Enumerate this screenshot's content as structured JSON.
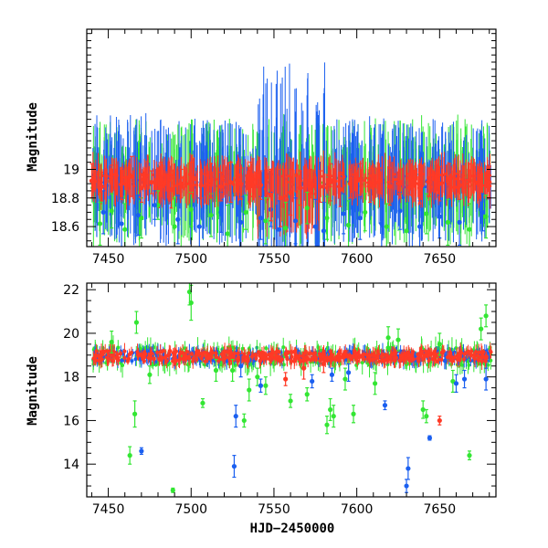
{
  "colors": {
    "green": "#33e633",
    "blue": "#1a5ff0",
    "red": "#ff3a26"
  },
  "chart_data": [
    {
      "type": "scatter",
      "title": "",
      "xlabel": "",
      "ylabel": "Magnitude",
      "xlim": [
        7437,
        7684
      ],
      "ylim": [
        19.98,
        18.46
      ],
      "y_inverted": true,
      "grid": false,
      "xticks": [
        7450,
        7500,
        7550,
        7600,
        7650
      ],
      "yticks": [
        18.6,
        18.8,
        19
      ],
      "ytick_labels": [
        "18.6",
        "18.8",
        "19"
      ],
      "series": [
        {
          "color": "green",
          "x": [
            7445,
            7452,
            7460,
            7470,
            7480,
            7490,
            7500,
            7512,
            7522,
            7533,
            7545,
            7557,
            7570,
            7582,
            7595,
            7605,
            7618,
            7630,
            7642,
            7655,
            7668,
            7678
          ],
          "y": [
            18.62,
            18.71,
            18.58,
            18.66,
            18.75,
            18.6,
            18.72,
            18.68,
            18.55,
            18.7,
            18.64,
            18.59,
            18.73,
            18.66,
            18.61,
            18.7,
            18.6,
            18.57,
            18.69,
            18.63,
            18.58,
            18.67
          ],
          "err": [
            0.15,
            0.12,
            0.18,
            0.14,
            0.1,
            0.2,
            0.12,
            0.15,
            0.2,
            0.12,
            0.16,
            0.18,
            0.11,
            0.15,
            0.17,
            0.13,
            0.16,
            0.19,
            0.14,
            0.16,
            0.18,
            0.15
          ]
        },
        {
          "color": "blue",
          "x": [
            7447,
            7458,
            7468,
            7478,
            7492,
            7505,
            7518,
            7530,
            7542,
            7548,
            7553,
            7563,
            7575,
            7580,
            7592,
            7602,
            7615,
            7626,
            7638,
            7650,
            7662,
            7676
          ],
          "y": [
            18.7,
            18.62,
            18.68,
            18.75,
            18.65,
            18.6,
            18.7,
            18.63,
            18.66,
            18.72,
            18.58,
            18.64,
            18.6,
            18.57,
            18.69,
            18.66,
            18.62,
            18.71,
            18.6,
            18.67,
            18.63,
            18.7
          ],
          "err": [
            0.15,
            0.18,
            0.14,
            0.1,
            0.17,
            0.2,
            0.14,
            0.18,
            0.15,
            0.12,
            0.2,
            0.16,
            0.19,
            0.2,
            0.14,
            0.15,
            0.17,
            0.13,
            0.18,
            0.15,
            0.16,
            0.13
          ]
        },
        {
          "color": "red",
          "x": [
            7440,
            7446,
            7452,
            7458,
            7464,
            7470,
            7476,
            7482,
            7488,
            7494,
            7500,
            7506,
            7512,
            7518,
            7524,
            7530,
            7536,
            7542,
            7548,
            7554,
            7560,
            7566,
            7572,
            7578,
            7584,
            7590,
            7596,
            7602,
            7608,
            7614,
            7620,
            7626,
            7632,
            7638,
            7644,
            7650,
            7656,
            7662,
            7668,
            7674,
            7680
          ],
          "y": [
            18.92,
            18.88,
            18.94,
            18.9,
            18.95,
            18.87,
            18.91,
            18.93,
            18.86,
            18.9,
            18.94,
            18.89,
            18.92,
            18.88,
            18.91,
            18.9,
            18.93,
            18.89,
            18.82,
            18.8,
            18.84,
            18.87,
            18.9,
            18.88,
            18.91,
            18.86,
            18.9,
            18.93,
            18.89,
            18.92,
            18.88,
            18.9,
            18.94,
            18.87,
            18.91,
            18.9,
            18.93,
            18.89,
            18.92,
            18.9,
            18.91
          ],
          "err": [
            0.12,
            0.1,
            0.09,
            0.11,
            0.14,
            0.1,
            0.08,
            0.12,
            0.13,
            0.1,
            0.11,
            0.09,
            0.12,
            0.1,
            0.14,
            0.11,
            0.12,
            0.1,
            0.18,
            0.2,
            0.16,
            0.12,
            0.1,
            0.11,
            0.13,
            0.12,
            0.1,
            0.11,
            0.12,
            0.09,
            0.13,
            0.1,
            0.12,
            0.11,
            0.1,
            0.12,
            0.11,
            0.1,
            0.12,
            0.1,
            0.11
          ]
        }
      ]
    },
    {
      "type": "scatter",
      "title": "",
      "xlabel": "HJD−2450000",
      "ylabel": "Magnitude",
      "xlim": [
        7437,
        7684
      ],
      "ylim": [
        22.3,
        12.5
      ],
      "y_inverted": true,
      "grid": false,
      "xticks": [
        7450,
        7500,
        7550,
        7600,
        7650
      ],
      "yticks": [
        14,
        16,
        18,
        20,
        22
      ],
      "ytick_labels": [
        "14",
        "16",
        "18",
        "20",
        "22"
      ],
      "series": [
        {
          "color": "green",
          "x": [
            7463,
            7466,
            7467,
            7489,
            7499,
            7500,
            7507,
            7525,
            7532,
            7535,
            7540,
            7545,
            7560,
            7570,
            7582,
            7584,
            7586,
            7598,
            7611,
            7619,
            7640,
            7642,
            7658,
            7668,
            7675,
            7678,
            7452,
            7475,
            7515,
            7593,
            7625,
            7650
          ],
          "y": [
            14.4,
            16.3,
            20.5,
            12.8,
            21.9,
            21.4,
            16.8,
            18.3,
            16.0,
            17.4,
            18.0,
            17.6,
            16.9,
            17.2,
            15.8,
            16.5,
            16.2,
            16.3,
            17.7,
            19.8,
            16.5,
            16.2,
            17.8,
            14.4,
            20.2,
            20.8,
            19.6,
            18.1,
            18.3,
            17.9,
            19.7,
            19.5
          ],
          "err": [
            0.4,
            0.6,
            0.5,
            0.1,
            0.6,
            0.8,
            0.2,
            0.5,
            0.3,
            0.5,
            0.4,
            0.4,
            0.3,
            0.3,
            0.4,
            0.5,
            0.5,
            0.4,
            0.5,
            0.5,
            0.4,
            0.3,
            0.5,
            0.2,
            0.5,
            0.5,
            0.5,
            0.4,
            0.5,
            0.5,
            0.5,
            0.5
          ]
        },
        {
          "color": "blue",
          "x": [
            7470,
            7526,
            7527,
            7530,
            7542,
            7573,
            7585,
            7595,
            7617,
            7630,
            7631,
            7644,
            7660,
            7665,
            7678
          ],
          "y": [
            14.6,
            13.9,
            16.2,
            18.5,
            17.6,
            17.8,
            18.1,
            18.2,
            16.7,
            13.0,
            13.8,
            15.2,
            17.7,
            17.9,
            17.9
          ],
          "err": [
            0.15,
            0.5,
            0.5,
            0.5,
            0.3,
            0.3,
            0.3,
            0.4,
            0.2,
            0.3,
            0.5,
            0.1,
            0.4,
            0.4,
            0.5
          ]
        },
        {
          "color": "red",
          "x": [
            7557,
            7568,
            7580,
            7650
          ],
          "y": [
            17.9,
            18.4,
            18.6,
            16.0
          ],
          "err": [
            0.3,
            0.5,
            0.4,
            0.2
          ]
        }
      ],
      "band": {
        "center": 18.95,
        "spread": 0.35
      }
    }
  ]
}
